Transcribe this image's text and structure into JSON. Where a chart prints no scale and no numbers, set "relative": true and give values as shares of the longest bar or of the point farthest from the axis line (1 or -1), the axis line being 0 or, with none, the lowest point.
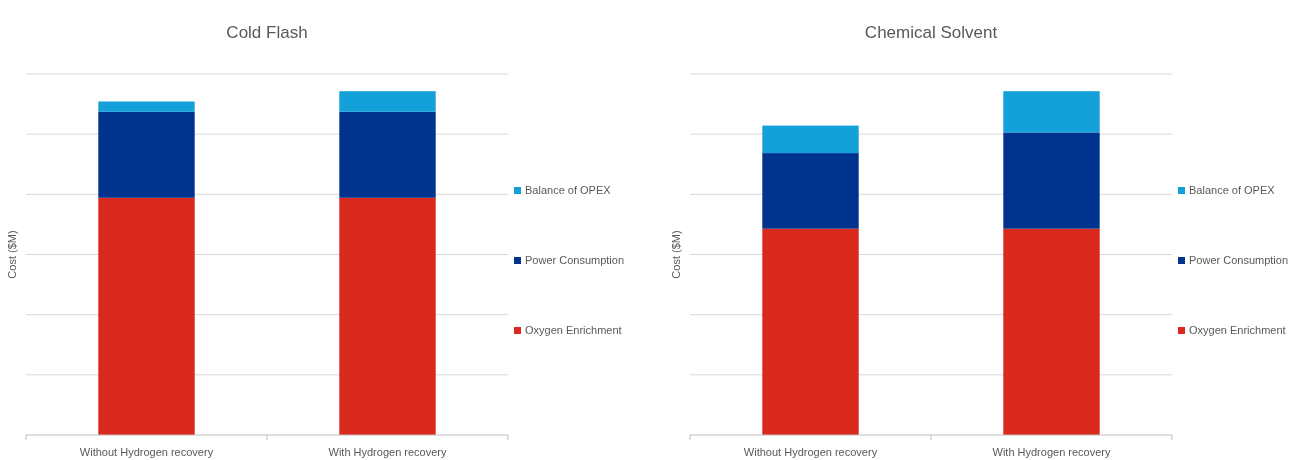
{
  "chart_data": [
    {
      "type": "bar",
      "title": "Cold Flash",
      "ylabel": "Cost ($M)",
      "categories": [
        "Without Hydrogen recovery",
        "With Hydrogen recovery"
      ],
      "stacked": true,
      "relative": true,
      "grid": true,
      "legend": "right",
      "series": [
        {
          "name": "Oxygen Enrichment",
          "color": "#d9291c",
          "values": [
            0.69,
            0.69
          ]
        },
        {
          "name": "Power Consumption",
          "color": "#00338d",
          "values": [
            0.25,
            0.25
          ]
        },
        {
          "name": "Balance of OPEX",
          "color": "#14a0d8",
          "values": [
            0.03,
            0.06
          ]
        }
      ]
    },
    {
      "type": "bar",
      "title": "Chemical Solvent",
      "ylabel": "Cost ($M)",
      "categories": [
        "Without Hydrogen recovery",
        "With Hydrogen recovery"
      ],
      "stacked": true,
      "relative": true,
      "grid": true,
      "legend": "right",
      "series": [
        {
          "name": "Oxygen Enrichment",
          "color": "#d9291c",
          "values": [
            0.6,
            0.6
          ]
        },
        {
          "name": "Power Consumption",
          "color": "#00338d",
          "values": [
            0.22,
            0.28
          ]
        },
        {
          "name": "Balance of OPEX",
          "color": "#14a0d8",
          "values": [
            0.08,
            0.12
          ]
        }
      ]
    }
  ]
}
